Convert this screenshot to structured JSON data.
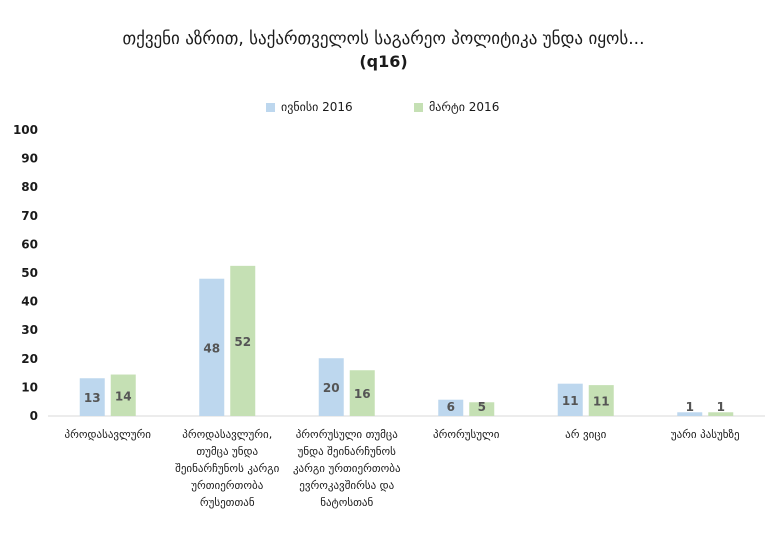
{
  "chart_data": {
    "type": "bar",
    "title": "თქვენი აზრით, საქართველოს საგარეო პოლიტიკა უნდა იყოს...",
    "subtitle": "(q16)",
    "categories": [
      "პროდასავლური",
      "პროდასავლური, თუმცა უნდა შეინარჩუნოს კარგი ურთიერთობა რუსეთთან",
      "პრორუსული თუმცა უნდა შეინარჩუნოს კარგი ურთიერთობა ევროკავშირსა და ნატოსთან",
      "პრორუსული",
      "არ ვიცი",
      "უარი პასუხზე"
    ],
    "series": [
      {
        "name": "ივნისი 2016",
        "values": [
          13,
          48,
          20,
          6,
          11,
          1
        ]
      },
      {
        "name": "მარტი 2016",
        "values": [
          14,
          52,
          16,
          5,
          11,
          1
        ]
      }
    ],
    "value_labels": [
      [
        "13",
        "48",
        "20",
        "6",
        "11",
        "1"
      ],
      [
        "14",
        "52",
        "16",
        "5",
        "11",
        "1"
      ]
    ],
    "bar_values_estimated": [
      [
        13.2,
        48,
        20.2,
        5.7,
        11.3,
        1.3
      ],
      [
        14.5,
        52.5,
        16,
        4.8,
        10.8,
        1.3
      ]
    ],
    "ylim": [
      0,
      100
    ],
    "yticks": [
      "0",
      "10",
      "20",
      "30",
      "40",
      "50",
      "60",
      "70",
      "80",
      "90",
      "100"
    ],
    "legend_position": "top",
    "colors": [
      "#bdd7ee",
      "#c5e0b4"
    ],
    "grid": false
  }
}
